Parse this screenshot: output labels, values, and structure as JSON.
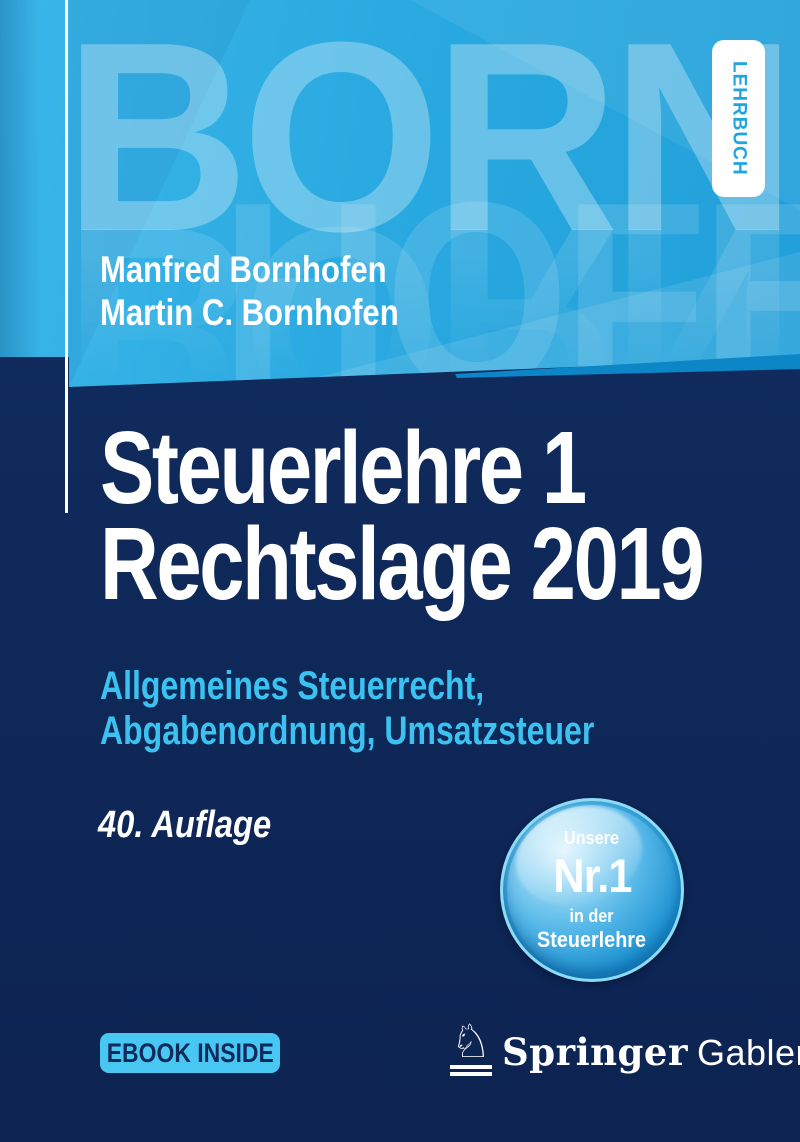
{
  "colors": {
    "navy": "#0f2a5b",
    "band_blue": "#29a9e0",
    "accent_cyan": "#3cc2f1",
    "fold_blue": "#0d86c8",
    "badge_bg": "#47c7f2",
    "badge_text_blue": "#1ea6e0",
    "white": "#ffffff"
  },
  "cover": {
    "series_badge": "LEHRBUCH",
    "watermark": {
      "row1": "BORN",
      "row2": "HOFEN"
    },
    "authors": [
      "Manfred Bornhofen",
      "Martin C. Bornhofen"
    ],
    "title": [
      "Steuerlehre 1",
      "Rechtslage 2019"
    ],
    "subtitle": [
      "Allgemeines Steuerrecht,",
      "Abgabenordnung, Umsatzsteuer"
    ],
    "edition": "40. Auflage",
    "roundel": {
      "line1": "Unsere",
      "line2": "Nr.1",
      "line3": "in der",
      "line4": "Steuerlehre"
    },
    "ebook_badge": "EBOOK INSIDE",
    "publisher": {
      "horse_icon": "♘",
      "serif_name": "Springer",
      "sans_name": "Gabler"
    }
  }
}
